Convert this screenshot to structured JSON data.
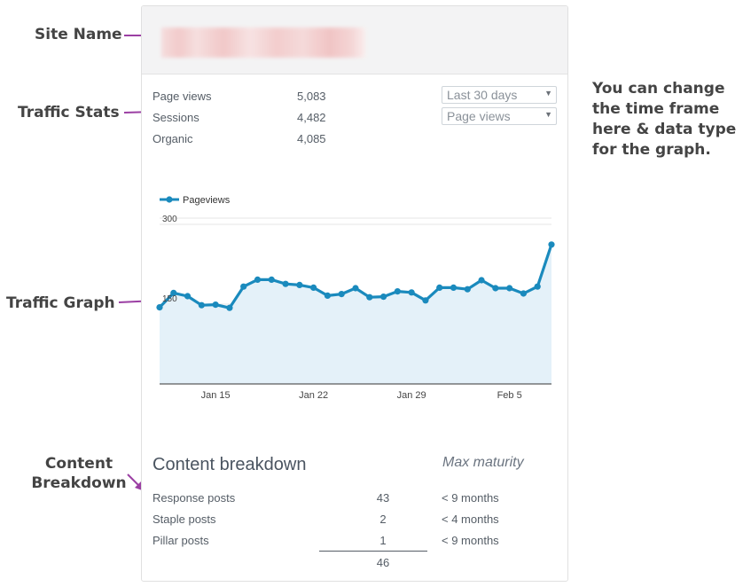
{
  "annotations": {
    "site_name": "Site Name",
    "traffic_stats": "Traffic Stats",
    "traffic_graph": "Traffic Graph",
    "content_breakdown_line1": "Content",
    "content_breakdown_line2": "Breakdown",
    "time_frame_note": "You can change the time frame here & data type for the graph.",
    "arrow_color": "#9b3fa3"
  },
  "widget": {
    "site_name": "",
    "stats": [
      {
        "label": "Page views",
        "value": "5,083"
      },
      {
        "label": "Sessions",
        "value": "4,482"
      },
      {
        "label": "Organic",
        "value": "4,085"
      }
    ],
    "timeframe_select": {
      "value": "Last 30 days",
      "icon": "caret-down-icon"
    },
    "datatype_select": {
      "value": "Page views",
      "icon": "caret-down-icon"
    }
  },
  "chart_data": {
    "type": "area",
    "legend": [
      "Pageviews"
    ],
    "series": [
      {
        "name": "Pageviews",
        "values": [
          144,
          171,
          165,
          148,
          149,
          143,
          183,
          196,
          196,
          188,
          186,
          181,
          166,
          169,
          180,
          163,
          164,
          174,
          172,
          157,
          181,
          181,
          178,
          195,
          180,
          180,
          170,
          183,
          262
        ]
      }
    ],
    "x_tick_labels": [
      "Jan 15",
      "Jan 22",
      "Jan 29",
      "Feb 5"
    ],
    "x_tick_positions": [
      4,
      11,
      18,
      25
    ],
    "y_tick_labels": [
      "300",
      "150"
    ],
    "y_ticks": [
      300,
      150
    ],
    "ylim": [
      0,
      310
    ],
    "line_color": "#1a8abd",
    "fill_color": "#e4f1f9",
    "grid": true,
    "legend_position": "top-left"
  },
  "content_breakdown": {
    "title": "Content breakdown",
    "maturity_header": "Max maturity",
    "rows": [
      {
        "label": "Response posts",
        "count": "43",
        "max_maturity": "< 9 months"
      },
      {
        "label": "Staple posts",
        "count": "2",
        "max_maturity": "< 4 months"
      },
      {
        "label": "Pillar posts",
        "count": "1",
        "max_maturity": "< 9 months"
      }
    ],
    "total": "46"
  }
}
